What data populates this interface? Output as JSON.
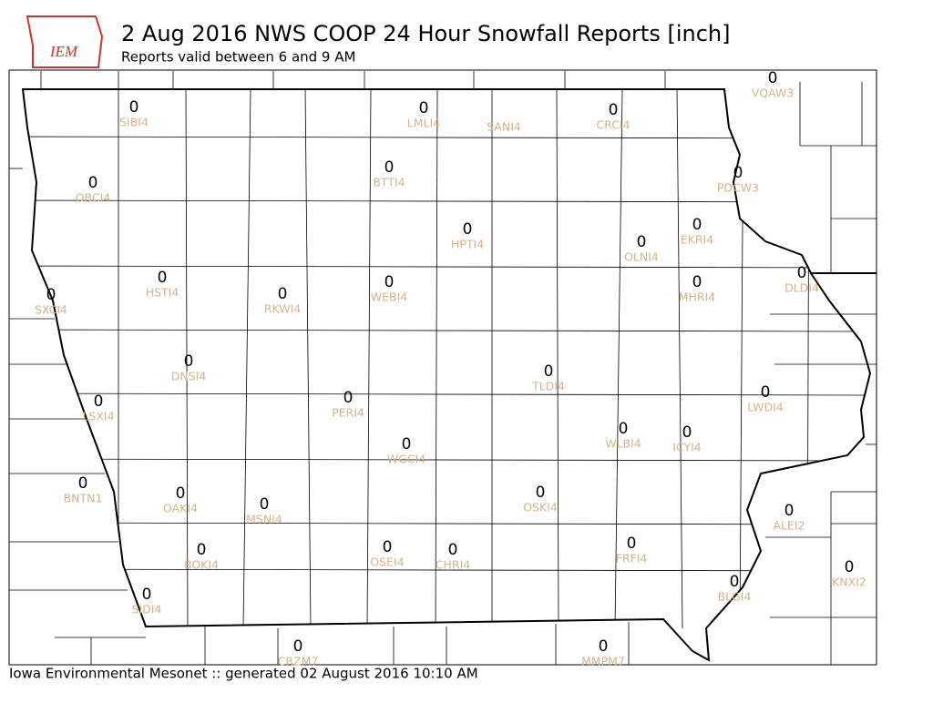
{
  "header": {
    "logo": "IEM",
    "title": "2 Aug 2016 NWS COOP 24 Hour Snowfall Reports [inch]",
    "subtitle": "Reports valid between 6 and 9 AM"
  },
  "footer": "Iowa Environmental Mesonet :: generated 02 August 2016 10:10 AM",
  "stations": [
    {
      "id": "SIBI4",
      "value": 0
    },
    {
      "id": "LMLI4",
      "value": 0
    },
    {
      "id": "SANI4"
    },
    {
      "id": "CRCI4",
      "value": 0
    },
    {
      "id": "VQAW3",
      "value": 0
    },
    {
      "id": "OBCI4",
      "value": 0
    },
    {
      "id": "BTTI4",
      "value": 0
    },
    {
      "id": "PDCW3",
      "value": 0
    },
    {
      "id": "HPTI4",
      "value": 0
    },
    {
      "id": "EKRI4",
      "value": 0
    },
    {
      "id": "OLNI4",
      "value": 0
    },
    {
      "id": "HSTI4",
      "value": 0
    },
    {
      "id": "RKWI4",
      "value": 0
    },
    {
      "id": "WEBI4",
      "value": 0
    },
    {
      "id": "MHRI4",
      "value": 0
    },
    {
      "id": "DLDI4",
      "value": 0
    },
    {
      "id": "SXCI4",
      "value": 0
    },
    {
      "id": "DNSI4",
      "value": 0
    },
    {
      "id": "TLDI4",
      "value": 0
    },
    {
      "id": "LWDI4",
      "value": 0
    },
    {
      "id": "LSXI4",
      "value": 0
    },
    {
      "id": "PERI4",
      "value": 0
    },
    {
      "id": "WLBI4",
      "value": 0
    },
    {
      "id": "ICYI4",
      "value": 0
    },
    {
      "id": "WGCI4",
      "value": 0
    },
    {
      "id": "BNTN1",
      "value": 0
    },
    {
      "id": "OAKI4",
      "value": 0
    },
    {
      "id": "MSNI4",
      "value": 0
    },
    {
      "id": "OSKI4",
      "value": 0
    },
    {
      "id": "ALEI2",
      "value": 0
    },
    {
      "id": "FRFI4",
      "value": 0
    },
    {
      "id": "BOKI4",
      "value": 0
    },
    {
      "id": "OSEI4",
      "value": 0
    },
    {
      "id": "CHRI4",
      "value": 0
    },
    {
      "id": "KNXI2",
      "value": 0
    },
    {
      "id": "BLGI4",
      "value": 0
    },
    {
      "id": "SIDI4",
      "value": 0
    },
    {
      "id": "CRZM7",
      "value": 0
    },
    {
      "id": "MMPM7",
      "value": 0
    }
  ]
}
